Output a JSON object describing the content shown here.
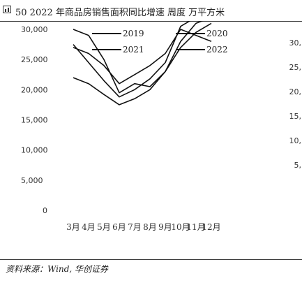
{
  "header": {
    "title": "50 2022 年商品房销售面积同比增速 周度 万平方米"
  },
  "footer": {
    "source": "资料来源：Wind, 华创证券"
  },
  "chart_data": {
    "type": "line",
    "title": "50 2022 年商品房销售面积同比增速 周度 万平方米",
    "xlabel": "",
    "ylabel": "",
    "categories": [
      "3月",
      "4月",
      "5月",
      "6月",
      "7月",
      "8月",
      "9月",
      "10月",
      "11月",
      "12月"
    ],
    "left_axis": {
      "ticks": [
        "30,000",
        "25,000",
        "20,000",
        "15,000",
        "10,000",
        "5,000",
        "0"
      ],
      "ylim": [
        0,
        30000
      ]
    },
    "right_axis": {
      "ticks": [
        "30,",
        "25,",
        "20,",
        "15,",
        "10,",
        "5,"
      ]
    },
    "legend": {
      "placement": "top",
      "entries": [
        "2019",
        "2020",
        "2021",
        "2022"
      ]
    },
    "series": [
      {
        "name": "2019",
        "values": [
          27000,
          26000,
          24000,
          21000,
          22500,
          24000,
          26000,
          30000,
          29000,
          28000
        ]
      },
      {
        "name": "2020",
        "values": [
          30000,
          29000,
          25000,
          19500,
          21000,
          20500,
          23000,
          28000,
          31000,
          32000
        ]
      },
      {
        "name": "2021",
        "values": [
          27500,
          24500,
          21500,
          18800,
          20000,
          21800,
          24500,
          30500,
          32000,
          33000
        ]
      },
      {
        "name": "2022",
        "values": [
          22000,
          21000,
          19200,
          17500,
          18500,
          20000,
          23000,
          27000,
          29500,
          31000
        ]
      }
    ],
    "colors": {
      "line": "#111111",
      "axis_text": "#333333"
    }
  }
}
